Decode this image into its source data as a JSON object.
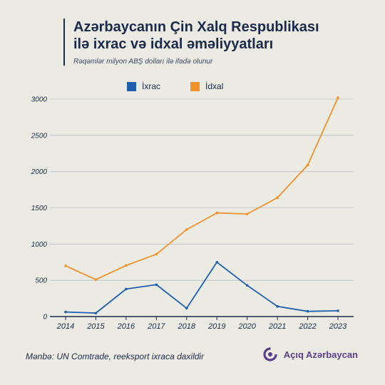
{
  "header": {
    "title_line1": "Azərbaycanın Çin Xalq Respublikası",
    "title_line2": "ilə ixrac və idxal əməliyyatları",
    "subtitle": "Rəqəmlər milyon ABŞ dolları ilə ifadə olunur"
  },
  "footer": {
    "source": "Mənbə: UN Comtrade, reeksport ixraca daxildir",
    "brand": "Açıq Azərbaycan"
  },
  "colors": {
    "export": "#1f5fae",
    "import": "#f0922b",
    "axis": "#1b2a4a",
    "grid": "#b9bdc6"
  },
  "icons": {
    "brand_logo": "brand-logo-icon"
  },
  "chart_data": {
    "type": "line",
    "categories": [
      "2014",
      "2015",
      "2016",
      "2017",
      "2018",
      "2019",
      "2020",
      "2021",
      "2022",
      "2023"
    ],
    "series": [
      {
        "name": "İxrac",
        "values": [
          63,
          48,
          380,
          440,
          115,
          750,
          430,
          140,
          72,
          80
        ]
      },
      {
        "name": "İdxal",
        "values": [
          700,
          510,
          705,
          860,
          1200,
          1430,
          1415,
          1640,
          2090,
          3020
        ]
      }
    ],
    "yticks": [
      "0",
      "500",
      "1000",
      "1500",
      "2000",
      "2500",
      "3000"
    ],
    "ylim": [
      0,
      3000
    ],
    "grid": true,
    "legend": "top-center"
  }
}
